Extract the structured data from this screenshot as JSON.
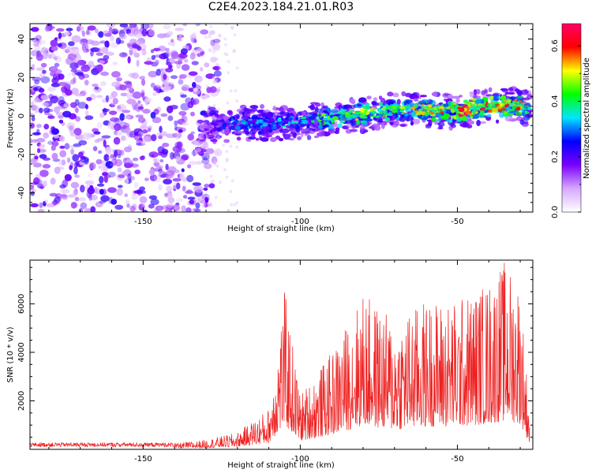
{
  "figure_title": "C2E4.2023.184.21.01.R03",
  "chart_data": [
    {
      "type": "heatmap",
      "title": "",
      "xlabel": "Height of straight line (km)",
      "ylabel": "Frequency (Hz)",
      "xlim": [
        -186,
        -26
      ],
      "ylim": [
        -50,
        48
      ],
      "x_ticks": [
        -150,
        -100,
        -50
      ],
      "y_ticks": [
        -40,
        -20,
        0,
        20,
        40
      ],
      "colorbar": {
        "label": "Normalized spectral amplitude",
        "range": [
          0,
          0.68
        ],
        "ticks": [
          0.0,
          0.2,
          0.4,
          0.6
        ],
        "colors": [
          "#ffffff",
          "#d6a8ff",
          "#7a00ff",
          "#0000ff",
          "#00e5ff",
          "#00ff00",
          "#ffff00",
          "#ff0000",
          "#ff0066"
        ]
      },
      "series": [
        {
          "kind": "noise-region",
          "x_range": [
            -186,
            -130
          ],
          "freq_range": [
            -50,
            48
          ],
          "amplitude": 0.12
        },
        {
          "kind": "signal-track",
          "points": [
            {
              "x": -133,
              "freq": -14,
              "amp": 0.12
            },
            {
              "x": -128,
              "freq": -5,
              "amp": 0.18
            },
            {
              "x": -120,
              "freq": -4,
              "amp": 0.3
            },
            {
              "x": -110,
              "freq": -4,
              "amp": 0.28
            },
            {
              "x": -100,
              "freq": -3,
              "amp": 0.3
            },
            {
              "x": -90,
              "freq": -1,
              "amp": 0.4
            },
            {
              "x": -80,
              "freq": 1,
              "amp": 0.45
            },
            {
              "x": -70,
              "freq": 3,
              "amp": 0.4
            },
            {
              "x": -60,
              "freq": 3,
              "amp": 0.45
            },
            {
              "x": -50,
              "freq": 2,
              "amp": 0.55
            },
            {
              "x": -40,
              "freq": 5,
              "amp": 0.55
            },
            {
              "x": -30,
              "freq": 6,
              "amp": 0.5
            },
            {
              "x": -27,
              "freq": 3,
              "amp": 0.45
            }
          ]
        }
      ]
    },
    {
      "type": "line",
      "title": "",
      "xlabel": "Height of straight line (km)",
      "ylabel": "SNR (10 * v/v)",
      "xlim": [
        -186,
        -26
      ],
      "ylim": [
        0,
        7800
      ],
      "x_ticks": [
        -150,
        -100,
        -50
      ],
      "y_ticks": [
        2000,
        4000,
        6000
      ],
      "series_color": "#ee2222",
      "envelope": [
        {
          "x": -186,
          "snr": 250
        },
        {
          "x": -140,
          "snr": 250
        },
        {
          "x": -130,
          "snr": 400
        },
        {
          "x": -120,
          "snr": 700
        },
        {
          "x": -110,
          "snr": 1700
        },
        {
          "x": -105,
          "snr": 6600
        },
        {
          "x": -100,
          "snr": 2300
        },
        {
          "x": -90,
          "snr": 4000
        },
        {
          "x": -80,
          "snr": 6500
        },
        {
          "x": -70,
          "snr": 5300
        },
        {
          "x": -60,
          "snr": 6200
        },
        {
          "x": -50,
          "snr": 6200
        },
        {
          "x": -40,
          "snr": 7000
        },
        {
          "x": -35,
          "snr": 7800
        },
        {
          "x": -30,
          "snr": 7000
        },
        {
          "x": -27,
          "snr": 1500
        }
      ]
    }
  ]
}
